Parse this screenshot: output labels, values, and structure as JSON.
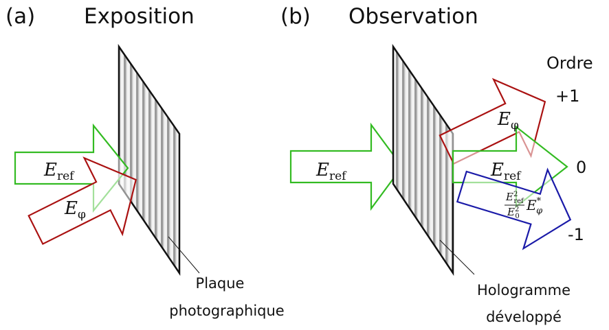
{
  "panels": [
    {
      "label": "(a)",
      "title": "Exposition",
      "beams": [
        {
          "symbol": "E",
          "subscript": "ref"
        },
        {
          "symbol": "E",
          "subscript": "φ"
        }
      ],
      "plate_label": [
        "Plaque",
        "photographique"
      ]
    },
    {
      "label": "(b)",
      "title": "Observation",
      "beams": [
        {
          "symbol": "E",
          "subscript": "ref"
        },
        {
          "symbol": "E",
          "subscript": "φ"
        },
        {
          "symbol": "E",
          "subscript": "ref"
        }
      ],
      "conjugate_beam": {
        "num_symbol": "E",
        "num_sup": "2",
        "num_sub": "ref",
        "den_symbol": "E",
        "den_sup": "2",
        "den_sub": "0",
        "symbol": "E",
        "sub": "φ",
        "sup": "*"
      },
      "order_title": "Ordre",
      "orders": [
        "+1",
        "0",
        "-1"
      ],
      "plate_label": [
        "Hologramme",
        "développé"
      ]
    }
  ]
}
